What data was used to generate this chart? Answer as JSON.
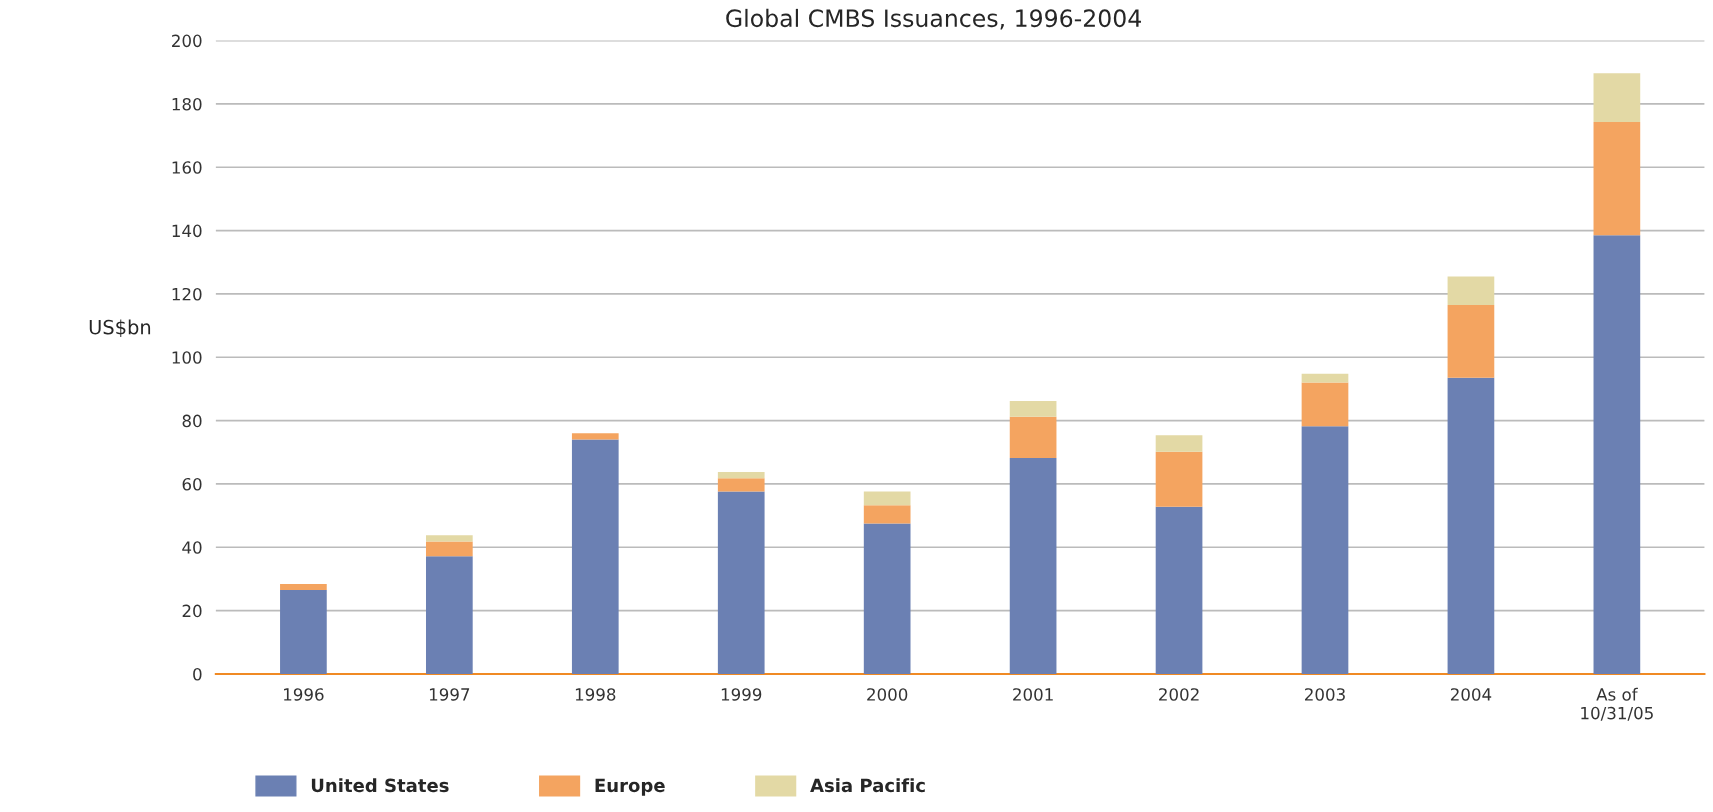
{
  "chart_data": {
    "type": "bar",
    "title": "Global CMBS Issuances, 1996-2004",
    "ylabel": "US$bn",
    "categories": [
      "1996",
      "1997",
      "1998",
      "1999",
      "2000",
      "2001",
      "2002",
      "2003",
      "2004",
      "As of\n10/31/05"
    ],
    "stacked": true,
    "series": [
      {
        "name": "United States",
        "color": "#6b80b3",
        "values": [
          26.5,
          37.2,
          74.0,
          57.6,
          47.5,
          68.2,
          52.8,
          78.2,
          93.5,
          138.5
        ]
      },
      {
        "name": "Europe",
        "color": "#f4a460",
        "values": [
          1.9,
          4.6,
          2.0,
          4.2,
          5.8,
          13.0,
          17.4,
          13.8,
          23.0,
          35.8
        ]
      },
      {
        "name": "Asia Pacific",
        "color": "#e3d9a5",
        "values": [
          0.0,
          2.0,
          0.0,
          2.0,
          4.3,
          5.0,
          5.2,
          2.8,
          9.0,
          15.4
        ]
      }
    ],
    "ylim": [
      0,
      200
    ],
    "yticks": [
      0,
      20,
      40,
      60,
      80,
      100,
      120,
      140,
      160,
      180,
      200
    ],
    "grid": "y",
    "legend": "bottom left"
  }
}
